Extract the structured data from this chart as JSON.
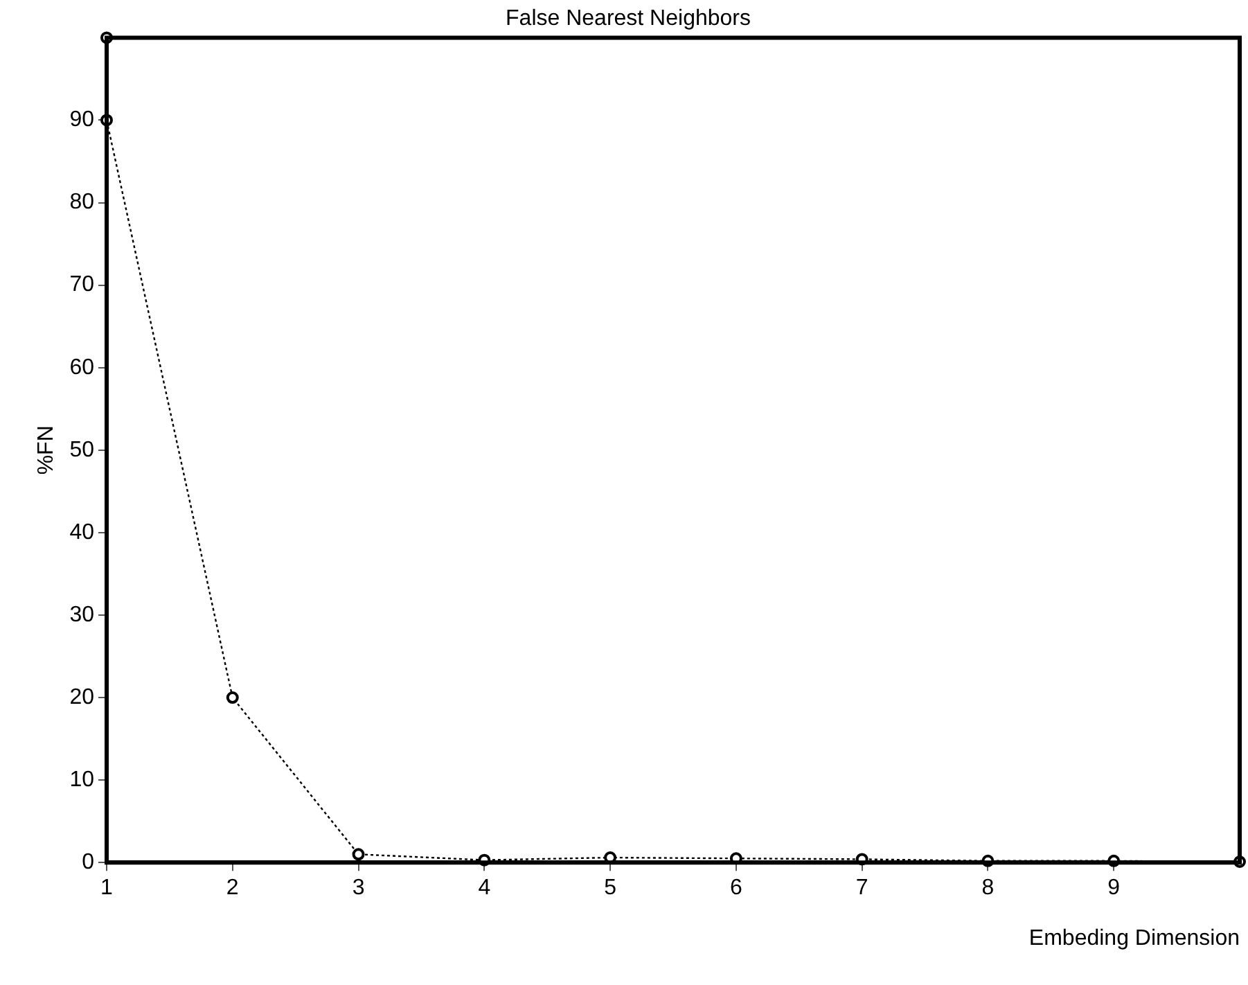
{
  "chart_data": {
    "type": "line",
    "title": "False Nearest Neighbors",
    "xlabel": "Embeding Dimension",
    "ylabel": "%FN",
    "x": [
      1,
      1,
      2,
      3,
      4,
      5,
      6,
      7,
      8,
      9,
      10
    ],
    "series": [
      {
        "color": "#000000",
        "values": [
          100,
          90,
          20,
          1,
          0.3,
          0.6,
          0.5,
          0.4,
          0.2,
          0.2,
          0.1
        ]
      }
    ],
    "xlim": [
      1,
      10
    ],
    "xticks": [
      1,
      2,
      3,
      4,
      5,
      6,
      7,
      8,
      9
    ],
    "ylim": [
      0,
      100
    ],
    "yticks": [
      0,
      10,
      20,
      30,
      40,
      50,
      60,
      70,
      80,
      90
    ],
    "grid": false,
    "legend": false,
    "marker": "circle",
    "line_style": "dotted"
  }
}
